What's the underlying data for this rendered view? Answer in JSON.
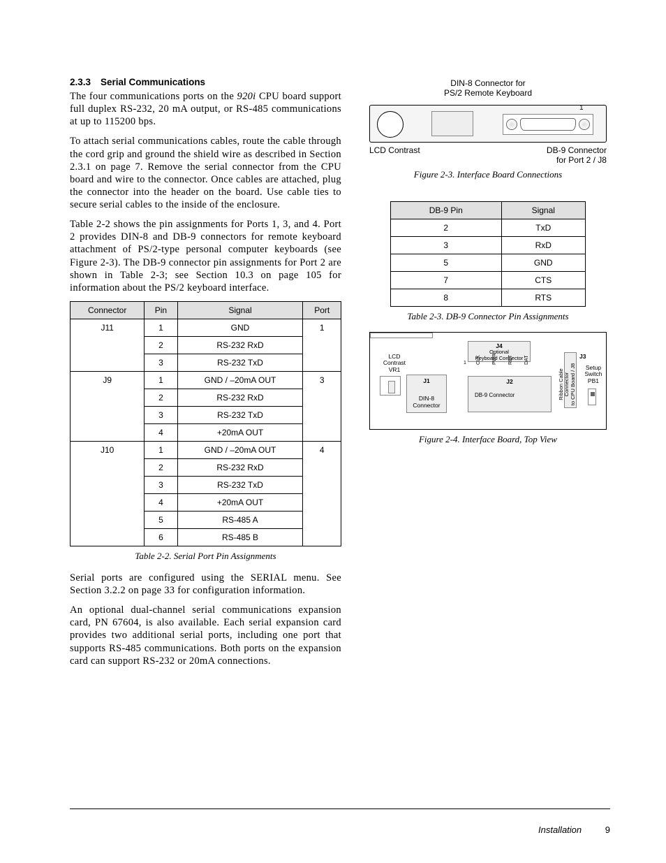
{
  "heading": {
    "number": "2.3.3",
    "title": "Serial Communications"
  },
  "paragraphs": {
    "p1a": "The four communications ports on the ",
    "p1_product": "920i",
    "p1b": " CPU board support full duplex RS-232, 20 mA output, or RS-485 communications at up to 115200 bps.",
    "p2": "To attach serial communications cables, route the cable through the cord grip and ground the shield wire as described in Section 2.3.1 on page 7. Remove the serial connector from the CPU board and wire to the connector. Once cables are attached, plug the connector into the header on the board. Use cable ties to secure serial cables to the inside of the enclosure.",
    "p3": "Table 2-2 shows the pin assignments for Ports 1, 3, and 4. Port 2 provides DIN-8 and DB-9 connectors for remote keyboard attachment of PS/2-type personal computer keyboards (see Figure 2-3). The DB-9 connector pin assignments for Port 2 are shown in Table 2-3; see Section 10.3 on page 105 for information about the PS/2 keyboard interface.",
    "p4": "Serial ports are configured using the SERIAL menu. See Section 3.2.2 on page 33 for configuration information.",
    "p5": "An optional dual-channel serial communications expansion card, PN 67604, is also available. Each serial expansion card provides two additional serial ports, including one port that supports RS-485 communications. Both ports on the expansion card can support RS-232 or 20mA connections."
  },
  "table2_2": {
    "headers": [
      "Connector",
      "Pin",
      "Signal",
      "Port"
    ],
    "groups": [
      {
        "connector": "J11",
        "port": "1",
        "rows": [
          {
            "pin": "1",
            "signal": "GND"
          },
          {
            "pin": "2",
            "signal": "RS-232 RxD"
          },
          {
            "pin": "3",
            "signal": "RS-232 TxD"
          }
        ]
      },
      {
        "connector": "J9",
        "port": "3",
        "rows": [
          {
            "pin": "1",
            "signal": "GND / –20mA OUT"
          },
          {
            "pin": "2",
            "signal": "RS-232 RxD"
          },
          {
            "pin": "3",
            "signal": "RS-232 TxD"
          },
          {
            "pin": "4",
            "signal": "+20mA OUT"
          }
        ]
      },
      {
        "connector": "J10",
        "port": "4",
        "rows": [
          {
            "pin": "1",
            "signal": "GND / –20mA OUT"
          },
          {
            "pin": "2",
            "signal": "RS-232 RxD"
          },
          {
            "pin": "3",
            "signal": "RS-232 TxD"
          },
          {
            "pin": "4",
            "signal": "+20mA OUT"
          },
          {
            "pin": "5",
            "signal": "RS-485 A"
          },
          {
            "pin": "6",
            "signal": "RS-485 B"
          }
        ]
      }
    ],
    "caption": "Table 2-2. Serial Port Pin Assignments"
  },
  "figure2_3": {
    "top_label": "DIN-8 Connector for\nPS/2 Remote Keyboard",
    "left_bottom": "LCD Contrast",
    "right_bottom": "DB-9 Connector\nfor Port 2 / J8",
    "pin1": "1",
    "caption": "Figure 2-3. Interface Board Connections"
  },
  "table2_3": {
    "headers": [
      "DB-9 Pin",
      "Signal"
    ],
    "rows": [
      {
        "pin": "2",
        "signal": "TxD"
      },
      {
        "pin": "3",
        "signal": "RxD"
      },
      {
        "pin": "5",
        "signal": "GND"
      },
      {
        "pin": "7",
        "signal": "CTS"
      },
      {
        "pin": "8",
        "signal": "RTS"
      }
    ],
    "caption": "Table 2-3. DB-9 Connector Pin Assignments"
  },
  "figure2_4": {
    "lcd": "LCD\nContrast\nVR1",
    "j1_head": "J1",
    "j1_sub": "DIN-8\nConnector",
    "j4_head": "J4",
    "j4_sub": "Optional\nKeyboard Connector",
    "j4_pins": [
      "CLK",
      "PWR",
      "RET",
      "DAT"
    ],
    "j4_one": "1",
    "j2_head": "J2",
    "j2_sub": "DB-9 Connector",
    "j3_head": "J3",
    "j3_side": "Ribbon Cable Connector\nto CPU Board / J8",
    "setup": "Setup\nSwitch\nPB1",
    "caption": "Figure 2-4. Interface Board, Top View"
  },
  "footer": {
    "section": "Installation",
    "page": "9"
  }
}
